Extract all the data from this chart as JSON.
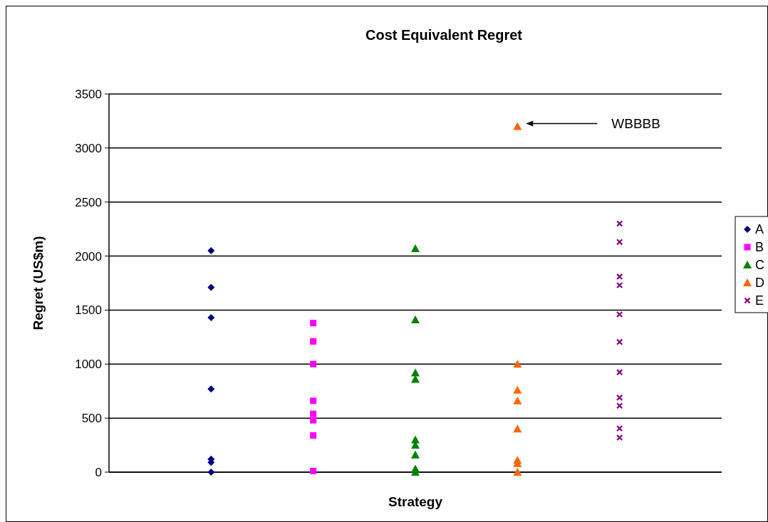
{
  "chart_data": {
    "type": "scatter",
    "title": "Cost Equivalent Regret",
    "xlabel": "Strategy",
    "ylabel": "Regret (US$m)",
    "categories": [
      null,
      null,
      null,
      null,
      null
    ],
    "ylim": [
      0,
      3500
    ],
    "yticks": [
      0,
      500,
      1000,
      1500,
      2000,
      2500,
      3000,
      3500
    ],
    "grid": "y",
    "legend": "right",
    "tick_labels": "y",
    "annotations": [
      "WBBBB"
    ],
    "series": [
      {
        "name": "A",
        "color": "#000080",
        "marker": "diamond",
        "values": [
          2050,
          null,
          null,
          null,
          null
        ]
      },
      {
        "color": "#000080",
        "marker": "diamond",
        "values": [
          1710,
          null,
          null,
          null,
          null
        ]
      },
      {
        "color": "#000080",
        "marker": "diamond",
        "values": [
          1430,
          null,
          null,
          null,
          null
        ]
      },
      {
        "color": "#000080",
        "marker": "diamond",
        "values": [
          770,
          null,
          null,
          null,
          null
        ]
      },
      {
        "color": "#000080",
        "marker": "diamond",
        "values": [
          120,
          null,
          null,
          null,
          null
        ]
      },
      {
        "color": "#000080",
        "marker": "diamond",
        "values": [
          90,
          null,
          null,
          null,
          null
        ]
      },
      {
        "color": "#000080",
        "marker": "diamond",
        "values": [
          0,
          null,
          null,
          null,
          null
        ]
      },
      {
        "name": "B",
        "color": "#ff00ff",
        "marker": "square",
        "values": [
          null,
          1380,
          null,
          null,
          null
        ]
      },
      {
        "color": "#ff00ff",
        "marker": "square",
        "values": [
          null,
          1210,
          null,
          null,
          null
        ]
      },
      {
        "color": "#ff00ff",
        "marker": "square",
        "values": [
          null,
          1000,
          null,
          null,
          null
        ]
      },
      {
        "color": "#ff00ff",
        "marker": "square",
        "values": [
          null,
          660,
          null,
          null,
          null
        ]
      },
      {
        "color": "#ff00ff",
        "marker": "square",
        "values": [
          null,
          540,
          null,
          null,
          null
        ]
      },
      {
        "color": "#ff00ff",
        "marker": "square",
        "values": [
          null,
          480,
          null,
          null,
          null
        ]
      },
      {
        "color": "#ff00ff",
        "marker": "square",
        "values": [
          null,
          340,
          null,
          null,
          null
        ]
      },
      {
        "color": "#ff00ff",
        "marker": "square",
        "values": [
          null,
          10,
          null,
          null,
          null
        ]
      },
      {
        "name": "C",
        "color": "#008000",
        "marker": "triangle",
        "values": [
          null,
          null,
          2070,
          null,
          null
        ]
      },
      {
        "color": "#008000",
        "marker": "triangle",
        "values": [
          null,
          null,
          1410,
          null,
          null
        ]
      },
      {
        "color": "#008000",
        "marker": "triangle",
        "values": [
          null,
          null,
          920,
          null,
          null
        ]
      },
      {
        "color": "#008000",
        "marker": "triangle",
        "values": [
          null,
          null,
          860,
          null,
          null
        ]
      },
      {
        "color": "#008000",
        "marker": "triangle",
        "values": [
          null,
          null,
          300,
          null,
          null
        ]
      },
      {
        "color": "#008000",
        "marker": "triangle",
        "values": [
          null,
          null,
          250,
          null,
          null
        ]
      },
      {
        "color": "#008000",
        "marker": "triangle",
        "values": [
          null,
          null,
          160,
          null,
          null
        ]
      },
      {
        "color": "#008000",
        "marker": "triangle",
        "values": [
          null,
          null,
          30,
          null,
          null
        ]
      },
      {
        "color": "#008000",
        "marker": "triangle",
        "values": [
          null,
          null,
          0,
          null,
          null
        ]
      },
      {
        "name": "D",
        "color": "#ff6600",
        "marker": "triangle",
        "values": [
          null,
          null,
          null,
          3200,
          null
        ]
      },
      {
        "color": "#ff6600",
        "marker": "triangle",
        "values": [
          null,
          null,
          null,
          1000,
          null
        ]
      },
      {
        "color": "#ff6600",
        "marker": "triangle",
        "values": [
          null,
          null,
          null,
          760,
          null
        ]
      },
      {
        "color": "#ff6600",
        "marker": "triangle",
        "values": [
          null,
          null,
          null,
          660,
          null
        ]
      },
      {
        "color": "#ff6600",
        "marker": "triangle",
        "values": [
          null,
          null,
          null,
          400,
          null
        ]
      },
      {
        "color": "#ff6600",
        "marker": "triangle",
        "values": [
          null,
          null,
          null,
          110,
          null
        ]
      },
      {
        "color": "#ff6600",
        "marker": "triangle",
        "values": [
          null,
          null,
          null,
          80,
          null
        ]
      },
      {
        "color": "#ff6600",
        "marker": "triangle",
        "values": [
          null,
          null,
          null,
          0,
          null
        ]
      },
      {
        "name": "E",
        "color": "#800080",
        "marker": "cross",
        "values": [
          null,
          null,
          null,
          null,
          2300
        ]
      },
      {
        "color": "#800080",
        "marker": "cross",
        "values": [
          null,
          null,
          null,
          null,
          2130
        ]
      },
      {
        "color": "#800080",
        "marker": "cross",
        "values": [
          null,
          null,
          null,
          null,
          1810
        ]
      },
      {
        "color": "#800080",
        "marker": "cross",
        "values": [
          null,
          null,
          null,
          null,
          1730
        ]
      },
      {
        "color": "#800080",
        "marker": "cross",
        "values": [
          null,
          null,
          null,
          null,
          1460
        ]
      },
      {
        "color": "#800080",
        "marker": "cross",
        "values": [
          null,
          null,
          null,
          null,
          1205
        ]
      },
      {
        "color": "#800080",
        "marker": "cross",
        "values": [
          null,
          null,
          null,
          null,
          925
        ]
      },
      {
        "color": "#800080",
        "marker": "cross",
        "values": [
          null,
          null,
          null,
          null,
          690
        ]
      },
      {
        "color": "#800080",
        "marker": "cross",
        "values": [
          null,
          null,
          null,
          null,
          615
        ]
      },
      {
        "color": "#800080",
        "marker": "cross",
        "values": [
          null,
          null,
          null,
          null,
          405
        ]
      },
      {
        "color": "#800080",
        "marker": "cross",
        "values": [
          null,
          null,
          null,
          null,
          320
        ]
      }
    ]
  }
}
